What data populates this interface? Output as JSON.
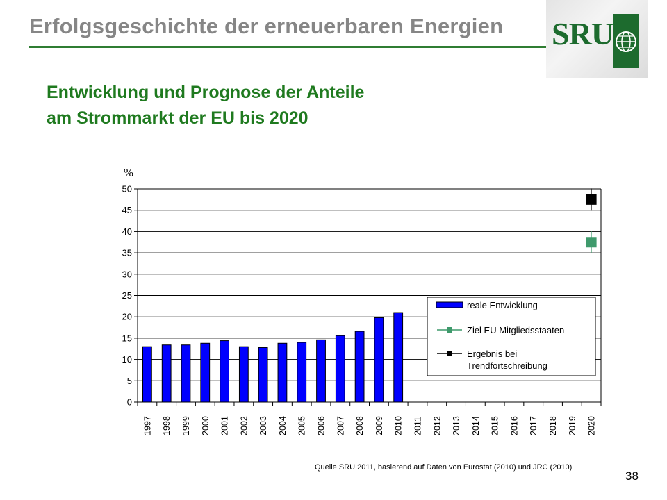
{
  "slide": {
    "title": "Erfolgsgeschichte der erneuerbaren Energien",
    "logo_text": "SRU",
    "subtitle_line1": "Entwicklung und Prognose der Anteile",
    "subtitle_line2": "am Strommarkt der EU bis 2020",
    "source": "Quelle SRU 2011, basierend auf Daten von Eurostat (2010) und JRC (2010)",
    "page_number": "38"
  },
  "colors": {
    "title_gray": "#868686",
    "green_rule": "#2f7d32",
    "subtitle_green": "#1f7a1f",
    "bar_blue": "#0000ff",
    "target_green": "#3f9a6c",
    "trend_black": "#000000"
  },
  "chart_data": {
    "type": "bar",
    "ylabel": "%",
    "ylim": [
      0,
      50
    ],
    "yticks": [
      0,
      5,
      10,
      15,
      20,
      25,
      30,
      35,
      40,
      45,
      50
    ],
    "categories": [
      "1997",
      "1998",
      "1999",
      "2000",
      "2001",
      "2002",
      "2003",
      "2004",
      "2005",
      "2006",
      "2007",
      "2008",
      "2009",
      "2010",
      "2011",
      "2012",
      "2013",
      "2014",
      "2015",
      "2016",
      "2017",
      "2018",
      "2019",
      "2020"
    ],
    "grid": true,
    "legend_position": "right",
    "series": [
      {
        "name": "reale Entwicklung",
        "kind": "bar",
        "color": "#0000ff",
        "values": [
          13,
          13.4,
          13.4,
          13.8,
          14.4,
          13,
          12.8,
          13.8,
          14,
          14.6,
          15.6,
          16.6,
          19.8,
          21,
          null,
          null,
          null,
          null,
          null,
          null,
          null,
          null,
          null,
          null
        ]
      },
      {
        "name": "Ziel EU Mitgliedsstaaten",
        "kind": "point",
        "color": "#3f9a6c",
        "values": [
          null,
          null,
          null,
          null,
          null,
          null,
          null,
          null,
          null,
          null,
          null,
          null,
          null,
          null,
          null,
          null,
          null,
          null,
          null,
          null,
          null,
          null,
          null,
          37.5
        ]
      },
      {
        "name": "Ergebnis bei Trendfortschreibung",
        "kind": "point",
        "color": "#000000",
        "values": [
          null,
          null,
          null,
          null,
          null,
          null,
          null,
          null,
          null,
          null,
          null,
          null,
          null,
          null,
          null,
          null,
          null,
          null,
          null,
          null,
          null,
          null,
          null,
          47.5
        ]
      }
    ],
    "legend_entries": [
      [
        "reale Entwicklung"
      ],
      [
        "Ziel EU Mitgliedsstaaten"
      ],
      [
        "Ergebnis bei",
        "Trendfortschreibung"
      ]
    ]
  }
}
